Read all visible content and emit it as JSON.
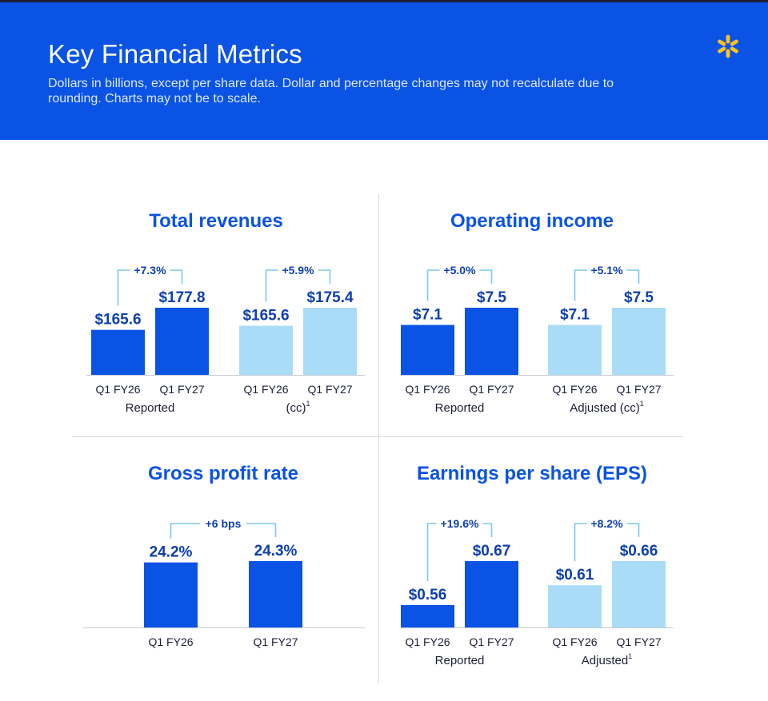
{
  "header": {
    "title": "Key Financial Metrics",
    "subtitle": "Dollars in billions, except per share data. Dollar and percentage changes may not recalculate due to rounding. Charts may not be to scale.",
    "logo_icon": "spark-logo-icon",
    "background_color": "#0a53e4",
    "logo_color": "#ffc220"
  },
  "colors": {
    "dark_bar": "#0a53e4",
    "light_bar": "#aadcf7",
    "connector": "#7cc7ee"
  },
  "chart_data": [
    {
      "type": "bar",
      "title": "Total revenues",
      "groups": [
        {
          "label": "Reported",
          "sup": "",
          "change": "+7.3%",
          "style": "dark",
          "categories": [
            "Q1 FY26",
            "Q1 FY27"
          ],
          "values": [
            165.6,
            177.8
          ],
          "value_labels": [
            "$165.6",
            "$177.8"
          ]
        },
        {
          "label": "(cc)",
          "sup": "1",
          "change": "+5.9%",
          "style": "light",
          "categories": [
            "Q1 FY26",
            "Q1 FY27"
          ],
          "values": [
            165.6,
            175.4
          ],
          "value_labels": [
            "$165.6",
            "$175.4"
          ]
        }
      ]
    },
    {
      "type": "bar",
      "title": "Operating income",
      "groups": [
        {
          "label": "Reported",
          "sup": "",
          "change": "+5.0%",
          "style": "dark",
          "categories": [
            "Q1 FY26",
            "Q1 FY27"
          ],
          "values": [
            7.1,
            7.5
          ],
          "value_labels": [
            "$7.1",
            "$7.5"
          ]
        },
        {
          "label": "Adjusted (cc)",
          "sup": "1",
          "change": "+5.1%",
          "style": "light",
          "categories": [
            "Q1 FY26",
            "Q1 FY27"
          ],
          "values": [
            7.1,
            7.5
          ],
          "value_labels": [
            "$7.1",
            "$7.5"
          ]
        }
      ]
    },
    {
      "type": "bar",
      "title": "Gross profit rate",
      "groups": [
        {
          "label": "",
          "sup": "",
          "change": "+6 bps",
          "style": "dark",
          "categories": [
            "Q1 FY26",
            "Q1 FY27"
          ],
          "values": [
            24.2,
            24.3
          ],
          "value_labels": [
            "24.2%",
            "24.3%"
          ]
        }
      ]
    },
    {
      "type": "bar",
      "title": "Earnings per share (EPS)",
      "groups": [
        {
          "label": "Reported",
          "sup": "",
          "change": "+19.6%",
          "style": "dark",
          "categories": [
            "Q1 FY26",
            "Q1 FY27"
          ],
          "values": [
            0.56,
            0.67
          ],
          "value_labels": [
            "$0.56",
            "$0.67"
          ]
        },
        {
          "label": "Adjusted",
          "sup": "1",
          "change": "+8.2%",
          "style": "light",
          "categories": [
            "Q1 FY26",
            "Q1 FY27"
          ],
          "values": [
            0.61,
            0.66
          ],
          "value_labels": [
            "$0.61",
            "$0.66"
          ]
        }
      ]
    }
  ]
}
